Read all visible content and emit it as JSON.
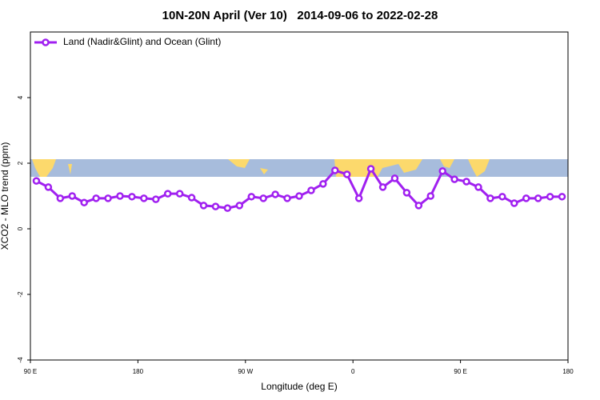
{
  "chart_data": {
    "type": "line",
    "title": "10N-20N April (Ver 10)   2014-09-06 to 2022-02-28",
    "xlabel": "Longitude (deg E)",
    "ylabel": "XCO2 - MLO trend (ppm)",
    "x": [
      95,
      105,
      115,
      125,
      135,
      145,
      155,
      165,
      175,
      185,
      195,
      205,
      215,
      225,
      235,
      245,
      255,
      265,
      275,
      285,
      295,
      305,
      315,
      325,
      335,
      345,
      355,
      365,
      375,
      385,
      395,
      405,
      415,
      425,
      435,
      445,
      455,
      465,
      475,
      485,
      495,
      505,
      515,
      525,
      535
    ],
    "series": [
      {
        "name": "Land (Nadir&Glint) and Ocean (Glint)",
        "color": "#a020f0",
        "values": [
          1.46,
          1.27,
          0.93,
          1.0,
          0.8,
          0.93,
          0.93,
          1.0,
          0.98,
          0.93,
          0.9,
          1.07,
          1.07,
          0.95,
          0.71,
          0.68,
          0.63,
          0.71,
          0.98,
          0.93,
          1.05,
          0.93,
          1.0,
          1.17,
          1.37,
          1.78,
          1.66,
          0.93,
          1.83,
          1.27,
          1.54,
          1.1,
          0.71,
          1.0,
          1.76,
          1.51,
          1.44,
          1.27,
          0.93,
          0.98,
          0.78,
          0.93,
          0.93,
          0.98,
          0.98
        ]
      }
    ],
    "xlim": [
      90,
      540
    ],
    "xticks": [
      {
        "value": 90,
        "label": "90 E"
      },
      180,
      {
        "value": 270,
        "label": "90 W"
      },
      {
        "value": 360,
        "label": "0"
      },
      {
        "value": 450,
        "label": "90 E"
      },
      {
        "value": 540,
        "label": "180"
      }
    ],
    "ylim": [
      -4,
      6
    ],
    "yticks": [
      -4,
      -2,
      0,
      2,
      4
    ],
    "legend": "top-left"
  }
}
